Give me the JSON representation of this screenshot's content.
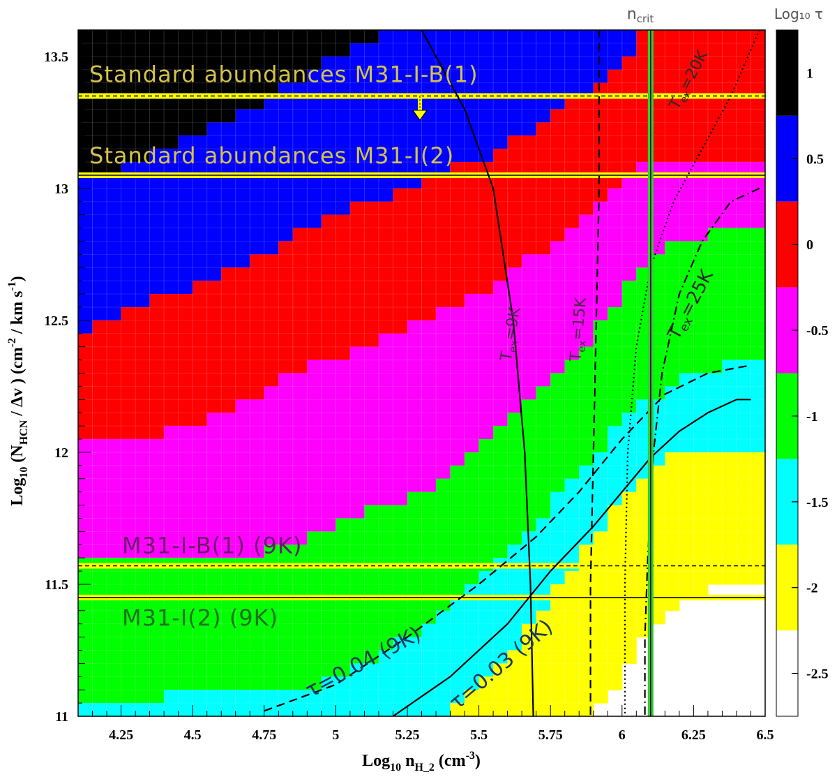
{
  "chart_data": {
    "type": "heatmap",
    "title": "",
    "xlabel": {
      "base": "Log",
      "sub1": "10",
      "mid": " n",
      "sub2": "H_2",
      "unit": " (cm",
      "unit_sup": "-3",
      "close": ")"
    },
    "ylabel": {
      "base": "Log",
      "sub1": "10",
      "mid": " (N",
      "sub2": "HCN",
      "unit": " / Δv ) (cm",
      "sup1": "-2",
      "unit2": " / km s",
      "sup2": "-1",
      "close": ")"
    },
    "xlim": [
      4.1,
      6.5
    ],
    "ylim": [
      11.0,
      13.6
    ],
    "x_ticks": [
      {
        "v": 4.25,
        "label": "4.25"
      },
      {
        "v": 4.5,
        "label": "4.5"
      },
      {
        "v": 4.75,
        "label": "4.75"
      },
      {
        "v": 5.0,
        "label": "5"
      },
      {
        "v": 5.25,
        "label": "5.25"
      },
      {
        "v": 5.5,
        "label": "5.5"
      },
      {
        "v": 5.75,
        "label": "5.75"
      },
      {
        "v": 6.0,
        "label": "6"
      },
      {
        "v": 6.25,
        "label": "6.25"
      },
      {
        "v": 6.5,
        "label": "6.5"
      }
    ],
    "y_ticks": [
      {
        "v": 11.0,
        "label": "11"
      },
      {
        "v": 11.5,
        "label": "11.5"
      },
      {
        "v": 12.0,
        "label": "12"
      },
      {
        "v": 12.5,
        "label": "12.5"
      },
      {
        "v": 13.0,
        "label": "13"
      },
      {
        "v": 13.5,
        "label": "13.5"
      }
    ],
    "colorbar": {
      "title": "Log₁₀ τ",
      "range": [
        -2.75,
        1.25
      ],
      "bins": [
        {
          "lo": 0.75,
          "hi": 1.25,
          "color": "#000000"
        },
        {
          "lo": 0.25,
          "hi": 0.75,
          "color": "#0000ff"
        },
        {
          "lo": -0.25,
          "hi": 0.25,
          "color": "#ff0000"
        },
        {
          "lo": -0.75,
          "hi": -0.25,
          "color": "#ff00ff"
        },
        {
          "lo": -1.25,
          "hi": -0.75,
          "color": "#00ff00"
        },
        {
          "lo": -1.75,
          "hi": -1.25,
          "color": "#00ffff"
        },
        {
          "lo": -2.25,
          "hi": -1.75,
          "color": "#ffff00"
        },
        {
          "lo": -2.75,
          "hi": -2.25,
          "color": "#ffffff"
        }
      ],
      "ticks": [
        {
          "v": 1.0,
          "label": "1"
        },
        {
          "v": 0.5,
          "label": "0.5"
        },
        {
          "v": 0.0,
          "label": "0"
        },
        {
          "v": -0.5,
          "label": "-0.5"
        },
        {
          "v": -1.0,
          "label": "-1"
        },
        {
          "v": -1.5,
          "label": "-1.5"
        },
        {
          "v": -2.0,
          "label": "-2"
        },
        {
          "v": -2.5,
          "label": "-2.5"
        }
      ]
    },
    "color_boundaries": [
      {
        "color": "#000000",
        "x": [
          4.1,
          4.2,
          4.4,
          4.6,
          4.8,
          5.0,
          5.2,
          5.25,
          6.5
        ],
        "y": [
          13.02,
          13.03,
          13.12,
          13.22,
          13.34,
          13.47,
          13.57,
          13.6,
          13.6
        ]
      },
      {
        "color": "#0000ff",
        "x": [
          4.1,
          4.3,
          4.6,
          4.9,
          5.2,
          5.5,
          5.75,
          6.0,
          6.1,
          6.5
        ],
        "y": [
          12.44,
          12.52,
          12.65,
          12.82,
          12.96,
          13.08,
          13.25,
          13.45,
          13.6,
          13.6
        ]
      },
      {
        "color": "#ff0000",
        "x": [
          4.1,
          4.3,
          4.6,
          4.9,
          5.2,
          5.5,
          5.8,
          6.0,
          6.1,
          6.2,
          6.3,
          6.5
        ],
        "y": [
          12.0,
          12.02,
          12.12,
          12.3,
          12.42,
          12.58,
          12.8,
          13.0,
          13.1,
          13.08,
          13.06,
          13.05
        ]
      },
      {
        "color": "#ff00ff",
        "x": [
          4.1,
          4.4,
          4.75,
          5.0,
          5.3,
          5.5,
          5.7,
          5.9,
          6.0,
          6.1,
          6.3,
          6.5
        ],
        "y": [
          11.58,
          11.6,
          11.6,
          11.7,
          11.82,
          12.0,
          12.2,
          12.42,
          12.58,
          12.72,
          12.8,
          12.82
        ]
      },
      {
        "color": "#00ff00",
        "x": [
          4.1,
          4.4,
          4.75,
          5.0,
          5.3,
          5.5,
          5.7,
          5.85,
          6.0,
          6.2,
          6.35,
          6.5
        ],
        "y": [
          11.04,
          11.05,
          11.05,
          11.12,
          11.3,
          11.5,
          11.7,
          11.9,
          12.1,
          12.25,
          12.3,
          12.32
        ]
      },
      {
        "color": "#00ffff",
        "x": [
          4.1,
          5.4,
          5.55,
          5.7,
          5.8,
          5.9,
          6.0,
          6.1,
          6.2,
          6.3,
          6.4,
          6.5
        ],
        "y": [
          11.0,
          11.0,
          11.15,
          11.35,
          11.5,
          11.65,
          11.8,
          11.92,
          11.98,
          12.0,
          12.0,
          12.0
        ]
      },
      {
        "color": "#ffff00",
        "x": [
          4.1,
          5.9,
          5.95,
          6.0,
          6.1,
          6.2,
          6.3,
          6.4,
          6.5
        ],
        "y": [
          11.0,
          11.0,
          11.02,
          11.1,
          11.3,
          11.4,
          11.45,
          11.46,
          11.46
        ]
      }
    ],
    "curves": [
      {
        "name": "T_ex=9K",
        "style": "solid",
        "x": [
          5.3,
          5.45,
          5.55,
          5.62,
          5.66,
          5.68,
          5.69
        ],
        "y": [
          13.6,
          13.3,
          13.0,
          12.5,
          12.0,
          11.5,
          11.0
        ]
      },
      {
        "name": "T_ex=15K",
        "style": "dashed",
        "x": [
          5.92,
          5.92,
          5.91,
          5.9,
          5.89,
          5.89
        ],
        "y": [
          13.6,
          13.0,
          12.5,
          12.0,
          11.5,
          11.0
        ]
      },
      {
        "name": "T_ex=20K",
        "style": "dotted",
        "x": [
          6.48,
          6.38,
          6.28,
          6.18,
          6.1,
          6.05,
          6.02,
          6.01,
          6.01
        ],
        "y": [
          13.6,
          13.35,
          13.15,
          12.95,
          12.7,
          12.4,
          12.0,
          11.5,
          11.0
        ]
      },
      {
        "name": "T_ex=25K",
        "style": "dashdot",
        "x": [
          6.48,
          6.38,
          6.28,
          6.2,
          6.14,
          6.11,
          6.09,
          6.08,
          6.08
        ],
        "y": [
          13.0,
          12.95,
          12.8,
          12.6,
          12.3,
          12.0,
          11.6,
          11.3,
          11.0
        ]
      },
      {
        "name": "τ=0.04 (9K)",
        "style": "dashed",
        "x": [
          4.75,
          5.0,
          5.25,
          5.5,
          5.7,
          5.85,
          6.0,
          6.15,
          6.3,
          6.45
        ],
        "y": [
          11.02,
          11.12,
          11.3,
          11.5,
          11.68,
          11.85,
          12.05,
          12.22,
          12.3,
          12.33
        ]
      },
      {
        "name": "τ=0.03 (9K)",
        "style": "solid",
        "x": [
          5.2,
          5.4,
          5.6,
          5.75,
          5.9,
          6.0,
          6.1,
          6.2,
          6.3,
          6.4,
          6.45
        ],
        "y": [
          11.0,
          11.15,
          11.35,
          11.55,
          11.72,
          11.85,
          11.98,
          12.08,
          12.15,
          12.2,
          12.2
        ]
      }
    ],
    "horizontal_lines": [
      {
        "label": "Standard abundances M31-I-B(1)",
        "y": 13.35,
        "style": "dashed"
      },
      {
        "label": "Standard abundances M31-I(2)",
        "y": 13.05,
        "style": "solid"
      },
      {
        "label": "M31-I-B(1)  (9K)",
        "y": 11.57,
        "style": "dashed"
      },
      {
        "label": "M31-I(2)  (9K)",
        "y": 11.45,
        "style": "solid"
      }
    ],
    "n_crit": {
      "label": "n",
      "sub": "crit",
      "x": 6.1
    },
    "curve_labels": {
      "t9": {
        "t": "T",
        "sub": "ex",
        "v": "=9K"
      },
      "t15": {
        "t": "T",
        "sub": "ex",
        "v": "=15K"
      },
      "t20": {
        "t": "T",
        "sub": "ex",
        "v": "=20K"
      },
      "t25": {
        "t": "T",
        "sub": "ex",
        "v": "=25K"
      },
      "tau04": "τ=0.04 (9K)",
      "tau03": "τ=0.03 (9K)"
    }
  }
}
